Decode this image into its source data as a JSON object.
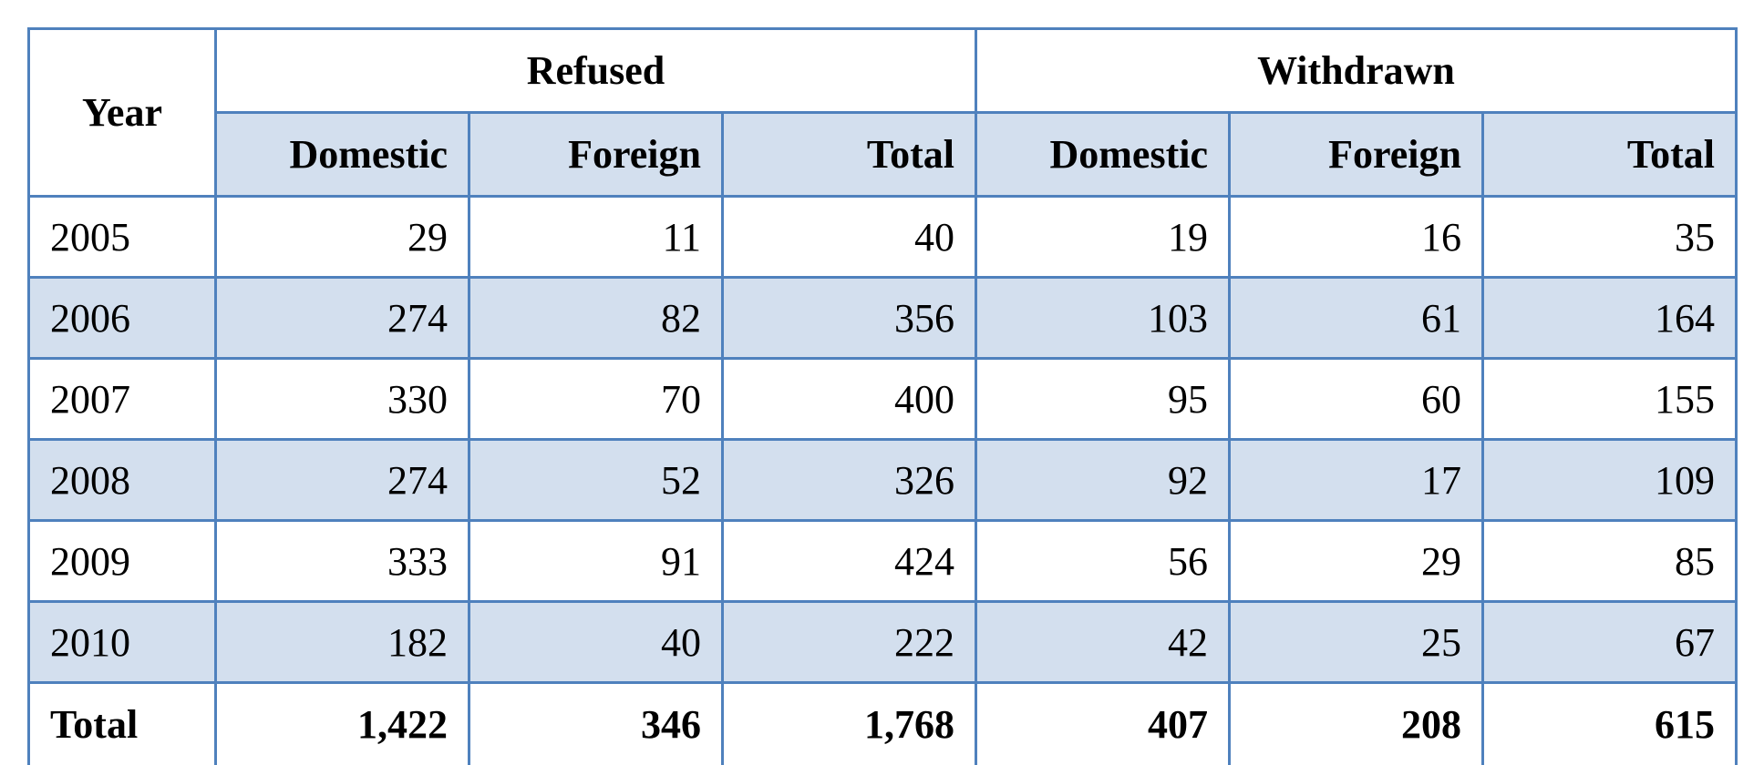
{
  "table": {
    "year_header": "Year",
    "groups": [
      "Refused",
      "Withdrawn"
    ],
    "sub_headers": [
      "Domestic",
      "Foreign",
      "Total",
      "Domestic",
      "Foreign",
      "Total"
    ],
    "rows": [
      {
        "year": "2005",
        "values": [
          "29",
          "11",
          "40",
          "19",
          "16",
          "35"
        ]
      },
      {
        "year": "2006",
        "values": [
          "274",
          "82",
          "356",
          "103",
          "61",
          "164"
        ]
      },
      {
        "year": "2007",
        "values": [
          "330",
          "70",
          "400",
          "95",
          "60",
          "155"
        ]
      },
      {
        "year": "2008",
        "values": [
          "274",
          "52",
          "326",
          "92",
          "17",
          "109"
        ]
      },
      {
        "year": "2009",
        "values": [
          "333",
          "91",
          "424",
          "56",
          "29",
          "85"
        ]
      },
      {
        "year": "2010",
        "values": [
          "182",
          "40",
          "222",
          "42",
          "25",
          "67"
        ]
      }
    ],
    "total_row": {
      "label": "Total",
      "values": [
        "1,422",
        "346",
        "1,768",
        "407",
        "208",
        "615"
      ]
    }
  },
  "colors": {
    "border": "#4f81bd",
    "band": "#d3dfee"
  }
}
